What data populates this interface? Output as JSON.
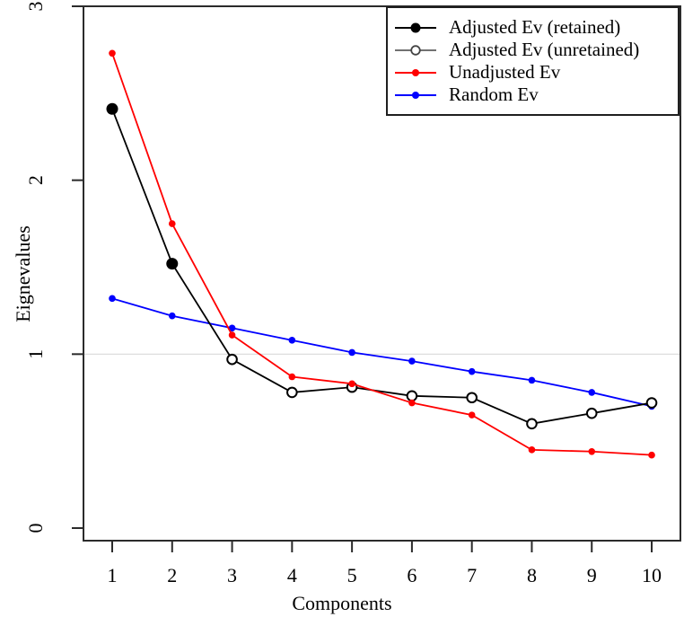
{
  "chart_data": {
    "type": "line",
    "title": "",
    "xlabel": "Components",
    "ylabel": "Eignevalues",
    "x": [
      1,
      2,
      3,
      4,
      5,
      6,
      7,
      8,
      9,
      10
    ],
    "xlim": [
      1,
      10
    ],
    "ylim": [
      0,
      3
    ],
    "yticks": [
      0,
      1,
      2,
      3
    ],
    "grid_lines_y": [
      1
    ],
    "grid_color": "#d9d9d9",
    "axis_color": "#2b2b2b",
    "background": "#ffffff",
    "legend_position": "top-right",
    "retained_count": 2,
    "series": [
      {
        "id": "adjusted",
        "name": "Adjusted Ev",
        "color": "#000000",
        "marker_retained": "filled-circle",
        "marker_unretained": "open-circle",
        "values": [
          2.41,
          1.52,
          0.97,
          0.78,
          0.81,
          0.76,
          0.75,
          0.6,
          0.66,
          0.72
        ]
      },
      {
        "id": "unadjusted",
        "name": "Unadjusted Ev",
        "color": "#ff0000",
        "marker": "filled-dot",
        "values": [
          2.73,
          1.75,
          1.11,
          0.87,
          0.83,
          0.72,
          0.65,
          0.45,
          0.44,
          0.42
        ]
      },
      {
        "id": "random",
        "name": "Random Ev",
        "color": "#0000ff",
        "marker": "filled-dot",
        "values": [
          1.32,
          1.22,
          1.15,
          1.08,
          1.01,
          0.96,
          0.9,
          0.85,
          0.78,
          0.7
        ]
      }
    ],
    "legend": {
      "items": [
        {
          "label": "Adjusted Ev (retained)",
          "line_color": "#000000",
          "marker": "filled-circle",
          "marker_color": "#000000"
        },
        {
          "label": "Adjusted Ev (unretained)",
          "line_color": "#444444",
          "marker": "open-circle",
          "marker_color": "#444444"
        },
        {
          "label": "Unadjusted Ev",
          "line_color": "#ff0000",
          "marker": "filled-dot",
          "marker_color": "#ff0000"
        },
        {
          "label": "Random Ev",
          "line_color": "#0000ff",
          "marker": "filled-dot",
          "marker_color": "#0000ff"
        }
      ]
    }
  }
}
